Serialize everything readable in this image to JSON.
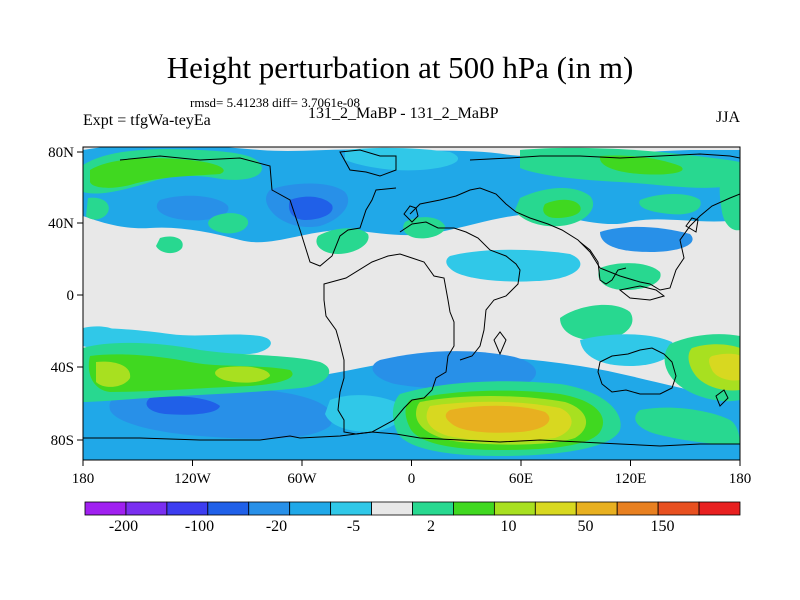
{
  "title": "Height perturbation at 500 hPa (in m)",
  "stats": "rmsd= 5.41238 diff= 3.7061e-08",
  "left_label": "Expt = tfgWa-teyEa",
  "center_label": "131_2_MaBP - 131_2_MaBP",
  "right_label": "JJA",
  "map": {
    "lat_labels": [
      "80N",
      "40N",
      "0",
      "40S",
      "80S"
    ],
    "lon_labels": [
      "180",
      "120W",
      "60W",
      "0",
      "60E",
      "120E",
      "180"
    ]
  },
  "colorbar": {
    "labels": [
      "-200",
      "-100",
      "-20",
      "-5",
      "2",
      "10",
      "50",
      "150"
    ],
    "colors": [
      "#a020f0",
      "#7a2ff0",
      "#3d3df0",
      "#2060e8",
      "#2890e8",
      "#20a8e8",
      "#30c8e8",
      "#e8e8e8",
      "#28d890",
      "#40d820",
      "#a8e020",
      "#d8d820",
      "#e8b020",
      "#e88020",
      "#e85020",
      "#e82020"
    ]
  },
  "palette": {
    "background_fill": "#e8e8e8",
    "blue": "#20a8e8",
    "light_blue": "#30c8e8",
    "dark_blue": "#2890e8",
    "deep_blue": "#2060e8",
    "green": "#28d890",
    "bright_green": "#40d820",
    "yellow_green": "#a8e020",
    "yellow": "#d8d820",
    "orange": "#e8b020"
  }
}
